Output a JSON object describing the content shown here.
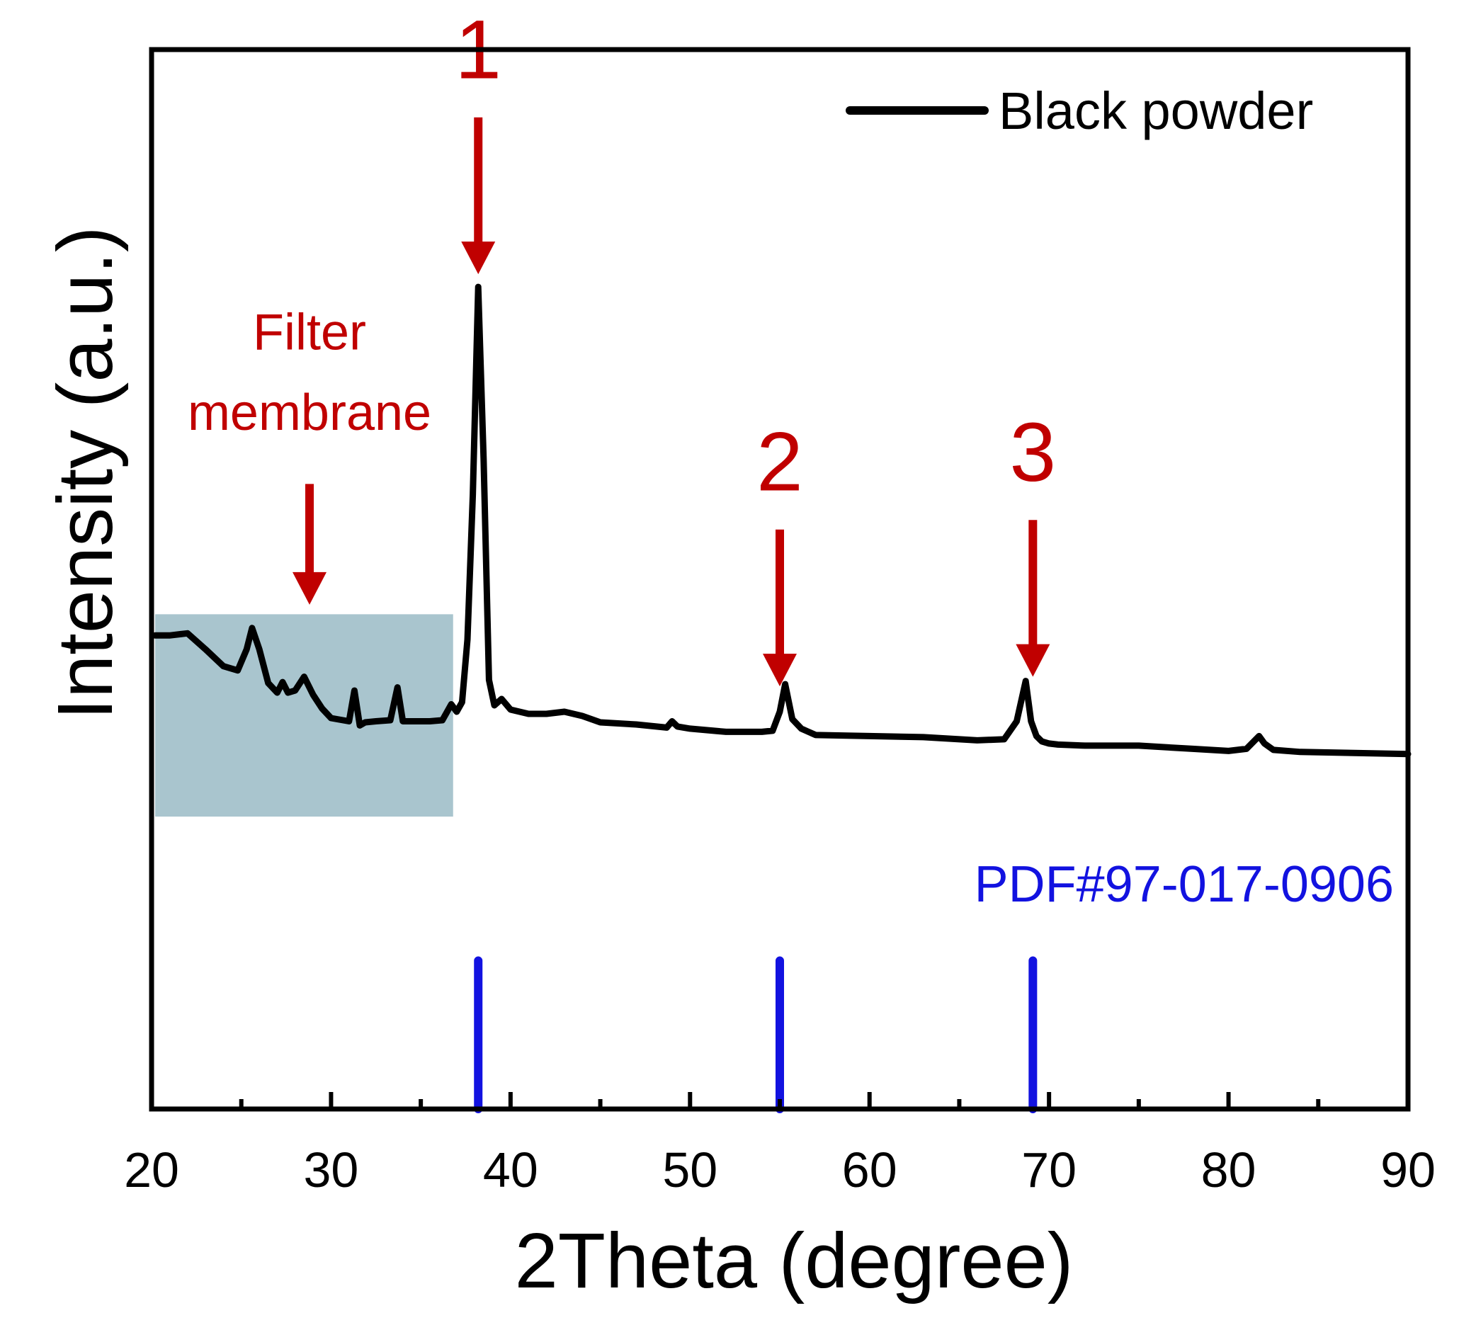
{
  "chart_data": {
    "type": "line",
    "title": "",
    "xlabel": "2Theta (degree)",
    "ylabel": "Intensity (a.u.)",
    "xlim": [
      20,
      90
    ],
    "ylim": [
      0,
      100
    ],
    "xticks": [
      20,
      30,
      40,
      50,
      60,
      70,
      80,
      90
    ],
    "xticks_minor": [
      25,
      35,
      45,
      55,
      65,
      75,
      85
    ],
    "grid": false,
    "legend": {
      "position": "top-right",
      "entries": [
        "Black powder"
      ]
    },
    "series": [
      {
        "name": "Black powder",
        "color": "#000000",
        "x": [
          20.2,
          21.0,
          22.0,
          23.0,
          24.0,
          24.8,
          25.3,
          25.6,
          26.0,
          26.5,
          27.0,
          27.3,
          27.6,
          28.0,
          28.5,
          29.0,
          29.5,
          30.0,
          31.0,
          31.3,
          31.6,
          31.9,
          32.5,
          33.3,
          33.7,
          34.0,
          34.5,
          35.5,
          36.2,
          36.7,
          37.0,
          37.3,
          37.6,
          37.9,
          38.2,
          38.5,
          38.8,
          39.1,
          39.5,
          40.0,
          41.0,
          42.0,
          43.0,
          44.0,
          45.0,
          47.0,
          48.7,
          49.0,
          49.3,
          50.0,
          52.0,
          54.0,
          54.6,
          55.0,
          55.3,
          55.7,
          56.2,
          57.0,
          60.0,
          63.0,
          66.0,
          67.5,
          68.2,
          68.7,
          69.0,
          69.3,
          69.6,
          70.0,
          70.5,
          72.0,
          75.0,
          78.0,
          80.0,
          81.0,
          81.7,
          82.0,
          82.5,
          84.0,
          87.0,
          90.0
        ],
        "y": [
          44.7,
          44.7,
          44.9,
          43.4,
          41.8,
          41.4,
          43.4,
          45.4,
          43.4,
          40.2,
          39.3,
          40.3,
          39.3,
          39.5,
          40.8,
          39.1,
          37.8,
          36.9,
          36.6,
          39.5,
          36.2,
          36.5,
          36.6,
          36.7,
          39.8,
          36.6,
          36.6,
          36.6,
          36.7,
          38.2,
          37.5,
          38.4,
          44.3,
          58.0,
          77.6,
          61.4,
          40.5,
          38.1,
          38.7,
          37.7,
          37.3,
          37.3,
          37.5,
          37.1,
          36.5,
          36.3,
          36.0,
          36.6,
          36.1,
          35.9,
          35.6,
          35.6,
          35.7,
          37.5,
          40.1,
          36.8,
          35.9,
          35.3,
          35.2,
          35.1,
          34.8,
          34.9,
          36.6,
          40.4,
          36.6,
          35.2,
          34.7,
          34.5,
          34.4,
          34.3,
          34.3,
          34.0,
          33.8,
          34.0,
          35.2,
          34.5,
          33.9,
          33.7,
          33.6,
          33.5
        ]
      }
    ],
    "reference_pattern": {
      "label": "PDF#97-017-0906",
      "color": "#1212e0",
      "positions": [
        38.2,
        55.0,
        69.1
      ],
      "height": 14
    },
    "shaded_region": {
      "x_range": [
        20.2,
        36.8
      ],
      "y_range": [
        27.6,
        46.7
      ],
      "color": "#a9c5ce"
    },
    "annotations": [
      {
        "name": "peak-1",
        "text": "1",
        "x": 38.2,
        "arrow_tip": 78.8,
        "arrow_tail": 93.6,
        "text_y": 97.3,
        "color": "#c00000"
      },
      {
        "name": "peak-2",
        "text": "2",
        "x": 55.0,
        "arrow_tip": 39.9,
        "arrow_tail": 54.7,
        "text_y": 58.4,
        "color": "#c00000"
      },
      {
        "name": "peak-3",
        "text": "3",
        "x": 69.1,
        "arrow_tip": 40.8,
        "arrow_tail": 55.6,
        "text_y": 59.3,
        "color": "#c00000"
      },
      {
        "name": "filter-membrane",
        "lines": [
          "Filter",
          "membrane"
        ],
        "x": 28.8,
        "arrow_tip": 47.6,
        "arrow_tail": 59.0,
        "text_y": [
          71.7,
          64.1
        ],
        "color": "#c00000"
      }
    ]
  }
}
